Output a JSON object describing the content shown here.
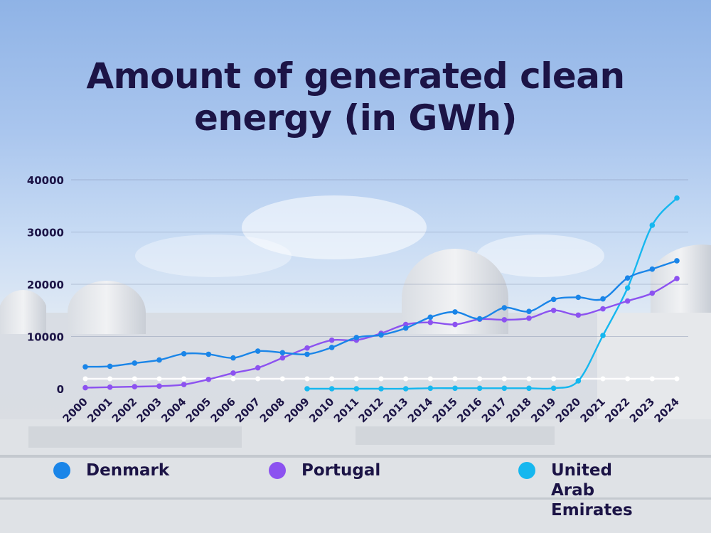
{
  "title_line1": "Amount of generated clean",
  "title_line2": "energy (in GWh)",
  "chart_data": {
    "type": "line",
    "title": "Amount of generated clean energy (in GWh)",
    "x": [
      "2000",
      "2001",
      "2002",
      "2003",
      "2004",
      "2005",
      "2006",
      "2007",
      "2008",
      "2009",
      "2010",
      "2011",
      "2012",
      "2013",
      "2014",
      "2015",
      "2016",
      "2017",
      "2018",
      "2019",
      "2020",
      "2021",
      "2022",
      "2023",
      "2024"
    ],
    "ylim": [
      0,
      40000
    ],
    "yticks": [
      0,
      10000,
      20000,
      30000,
      40000
    ],
    "grid": true,
    "legend_position": "bottom",
    "series": [
      {
        "name": "Denmark",
        "color": "#1a85e8",
        "values": [
          4200,
          4300,
          4900,
          5500,
          6700,
          6600,
          5900,
          7200,
          6900,
          6600,
          7900,
          9800,
          10300,
          11600,
          13700,
          14700,
          13400,
          15500,
          14800,
          17100,
          17500,
          17200,
          21200,
          22900,
          24500
        ]
      },
      {
        "name": "Portugal",
        "color": "#8c52f0",
        "values": [
          200,
          300,
          400,
          500,
          800,
          1800,
          3000,
          4000,
          5900,
          7800,
          9300,
          9300,
          10600,
          12300,
          12700,
          12300,
          13300,
          13200,
          13500,
          15000,
          14100,
          15300,
          16800,
          18300,
          21100
        ]
      },
      {
        "name": "United Arab Emirates",
        "color": "#16b7ef",
        "values": [
          null,
          null,
          null,
          null,
          null,
          null,
          null,
          null,
          null,
          0,
          0,
          0,
          0,
          0,
          100,
          100,
          100,
          100,
          100,
          100,
          1500,
          10200,
          19300,
          31300,
          36500
        ]
      }
    ]
  },
  "legend": [
    {
      "label": "Denmark",
      "color": "#1a85e8"
    },
    {
      "label": "Portugal",
      "color": "#8c52f0"
    },
    {
      "label": "United Arab Emirates",
      "color": "#16b7ef"
    }
  ]
}
